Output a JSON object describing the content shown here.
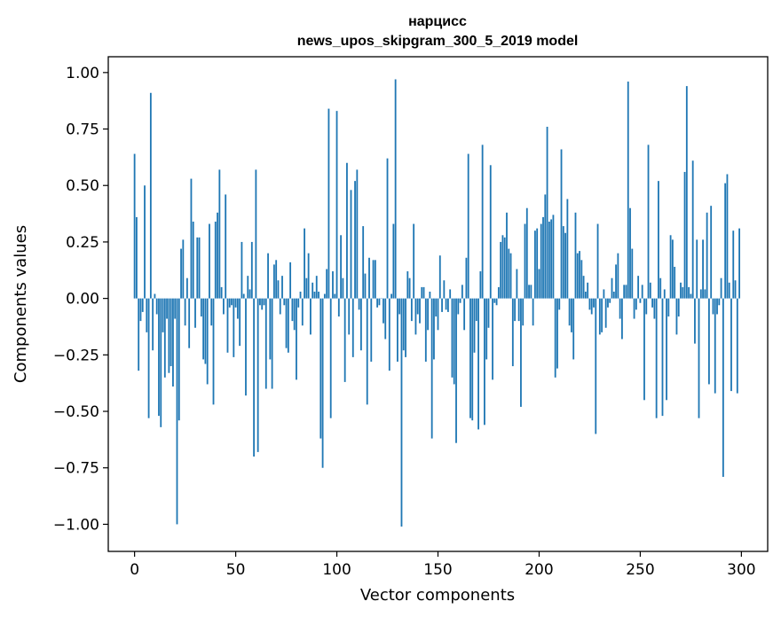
{
  "chart_data": {
    "type": "bar",
    "title": "нарцисс",
    "subtitle": "news_upos_skipgram_300_5_2019 model",
    "xlabel": "Vector components",
    "ylabel": "Components values",
    "xlim": [
      -13,
      313
    ],
    "ylim": [
      -1.12,
      1.07
    ],
    "xticks": [
      0,
      50,
      100,
      150,
      200,
      250,
      300
    ],
    "xtick_labels": [
      "0",
      "50",
      "100",
      "150",
      "200",
      "250",
      "300"
    ],
    "yticks": [
      1.0,
      0.75,
      0.5,
      0.25,
      0.0,
      -0.25,
      -0.5,
      -0.75,
      -1.0
    ],
    "ytick_labels": [
      "1.00",
      "0.75",
      "0.50",
      "0.25",
      "0.00",
      "−0.25",
      "−0.50",
      "−0.75",
      "−1.00"
    ],
    "bar_color": "#1f77b4",
    "grid": false,
    "x": [
      0,
      1,
      2,
      3,
      4,
      5,
      6,
      7,
      8,
      9,
      10,
      11,
      12,
      13,
      14,
      15,
      16,
      17,
      18,
      19,
      20,
      21,
      22,
      23,
      24,
      25,
      26,
      27,
      28,
      29,
      30,
      31,
      32,
      33,
      34,
      35,
      36,
      37,
      38,
      39,
      40,
      41,
      42,
      43,
      44,
      45,
      46,
      47,
      48,
      49,
      50,
      51,
      52,
      53,
      54,
      55,
      56,
      57,
      58,
      59,
      60,
      61,
      62,
      63,
      64,
      65,
      66,
      67,
      68,
      69,
      70,
      71,
      72,
      73,
      74,
      75,
      76,
      77,
      78,
      79,
      80,
      81,
      82,
      83,
      84,
      85,
      86,
      87,
      88,
      89,
      90,
      91,
      92,
      93,
      94,
      95,
      96,
      97,
      98,
      99,
      100,
      101,
      102,
      103,
      104,
      105,
      106,
      107,
      108,
      109,
      110,
      111,
      112,
      113,
      114,
      115,
      116,
      117,
      118,
      119,
      120,
      121,
      122,
      123,
      124,
      125,
      126,
      127,
      128,
      129,
      130,
      131,
      132,
      133,
      134,
      135,
      136,
      137,
      138,
      139,
      140,
      141,
      142,
      143,
      144,
      145,
      146,
      147,
      148,
      149,
      150,
      151,
      152,
      153,
      154,
      155,
      156,
      157,
      158,
      159,
      160,
      161,
      162,
      163,
      164,
      165,
      166,
      167,
      168,
      169,
      170,
      171,
      172,
      173,
      174,
      175,
      176,
      177,
      178,
      179,
      180,
      181,
      182,
      183,
      184,
      185,
      186,
      187,
      188,
      189,
      190,
      191,
      192,
      193,
      194,
      195,
      196,
      197,
      198,
      199,
      200,
      201,
      202,
      203,
      204,
      205,
      206,
      207,
      208,
      209,
      210,
      211,
      212,
      213,
      214,
      215,
      216,
      217,
      218,
      219,
      220,
      221,
      222,
      223,
      224,
      225,
      226,
      227,
      228,
      229,
      230,
      231,
      232,
      233,
      234,
      235,
      236,
      237,
      238,
      239,
      240,
      241,
      242,
      243,
      244,
      245,
      246,
      247,
      248,
      249,
      250,
      251,
      252,
      253,
      254,
      255,
      256,
      257,
      258,
      259,
      260,
      261,
      262,
      263,
      264,
      265,
      266,
      267,
      268,
      269,
      270,
      271,
      272,
      273,
      274,
      275,
      276,
      277,
      278,
      279,
      280,
      281,
      282,
      283,
      284,
      285,
      286,
      287,
      288,
      289,
      290,
      291,
      292,
      293,
      294,
      295,
      296,
      297,
      298,
      299
    ],
    "values": [
      0.64,
      0.36,
      -0.32,
      -0.1,
      -0.06,
      0.5,
      -0.15,
      -0.53,
      0.91,
      -0.23,
      0.02,
      -0.07,
      -0.52,
      -0.57,
      -0.15,
      -0.35,
      -0.09,
      -0.33,
      -0.3,
      -0.39,
      -0.09,
      -1.0,
      -0.54,
      0.22,
      0.26,
      -0.12,
      0.09,
      -0.22,
      0.53,
      0.34,
      -0.13,
      0.27,
      0.27,
      -0.08,
      -0.27,
      -0.29,
      -0.38,
      0.33,
      -0.12,
      -0.47,
      0.34,
      0.38,
      0.57,
      0.05,
      -0.07,
      0.46,
      -0.24,
      -0.04,
      -0.03,
      -0.26,
      -0.04,
      -0.09,
      -0.21,
      0.25,
      0.02,
      -0.43,
      0.1,
      0.04,
      0.25,
      -0.7,
      0.57,
      -0.68,
      -0.03,
      -0.05,
      -0.03,
      -0.4,
      0.2,
      -0.27,
      -0.4,
      0.15,
      0.17,
      0.08,
      -0.07,
      0.1,
      -0.03,
      -0.22,
      -0.24,
      0.16,
      -0.1,
      -0.14,
      -0.36,
      -0.04,
      0.03,
      -0.12,
      0.31,
      0.09,
      0.2,
      -0.16,
      0.07,
      0.03,
      0.1,
      0.03,
      -0.62,
      -0.75,
      0.02,
      0.13,
      0.84,
      -0.53,
      0.12,
      0.02,
      0.83,
      -0.08,
      0.28,
      0.09,
      -0.37,
      0.6,
      -0.16,
      0.48,
      -0.26,
      0.52,
      0.57,
      -0.05,
      -0.23,
      0.32,
      0.11,
      -0.47,
      0.18,
      -0.28,
      0.17,
      0.17,
      -0.04,
      -0.03,
      0.0,
      -0.11,
      -0.18,
      0.62,
      -0.32,
      0.02,
      0.33,
      0.97,
      -0.28,
      -0.07,
      -1.01,
      -0.23,
      -0.26,
      0.12,
      0.09,
      -0.1,
      0.33,
      -0.16,
      -0.07,
      -0.11,
      0.05,
      0.05,
      -0.28,
      -0.14,
      0.03,
      -0.62,
      -0.27,
      -0.08,
      -0.14,
      0.19,
      -0.06,
      0.08,
      -0.05,
      -0.06,
      0.04,
      -0.35,
      -0.38,
      -0.64,
      -0.07,
      -0.02,
      0.06,
      -0.14,
      0.18,
      0.64,
      -0.53,
      -0.54,
      -0.24,
      -0.1,
      -0.58,
      0.12,
      0.68,
      -0.56,
      -0.27,
      -0.13,
      0.59,
      -0.36,
      -0.02,
      -0.03,
      0.05,
      0.25,
      0.28,
      0.27,
      0.38,
      0.22,
      0.2,
      -0.3,
      -0.1,
      0.13,
      -0.1,
      -0.48,
      -0.12,
      0.33,
      0.4,
      0.06,
      0.06,
      -0.12,
      0.3,
      0.31,
      0.13,
      0.33,
      0.36,
      0.46,
      0.76,
      0.34,
      0.35,
      0.37,
      -0.35,
      -0.31,
      -0.05,
      0.66,
      0.32,
      0.29,
      0.44,
      -0.12,
      -0.15,
      -0.27,
      0.38,
      0.2,
      0.21,
      0.17,
      0.1,
      0.03,
      0.07,
      -0.05,
      -0.07,
      -0.04,
      -0.6,
      0.33,
      -0.16,
      -0.15,
      0.04,
      -0.13,
      -0.04,
      -0.02,
      0.09,
      0.03,
      0.15,
      0.2,
      -0.09,
      -0.18,
      0.06,
      0.06,
      0.96,
      0.4,
      0.22,
      -0.09,
      -0.05,
      0.1,
      -0.02,
      0.06,
      -0.45,
      -0.07,
      0.68,
      0.07,
      -0.04,
      -0.09,
      -0.53,
      0.52,
      0.09,
      -0.52,
      0.04,
      -0.45,
      -0.08,
      0.28,
      0.26,
      0.14,
      -0.16,
      -0.08,
      0.07,
      0.05,
      0.56,
      0.94,
      0.05,
      0.02,
      0.61,
      -0.2,
      0.26,
      -0.53,
      0.04,
      0.26,
      0.04,
      0.38,
      -0.38,
      0.41,
      -0.07,
      -0.42,
      -0.07,
      -0.03,
      0.09,
      -0.79,
      0.51,
      0.55,
      0.07,
      -0.41,
      0.3,
      0.08,
      -0.42,
      0.31
    ]
  }
}
